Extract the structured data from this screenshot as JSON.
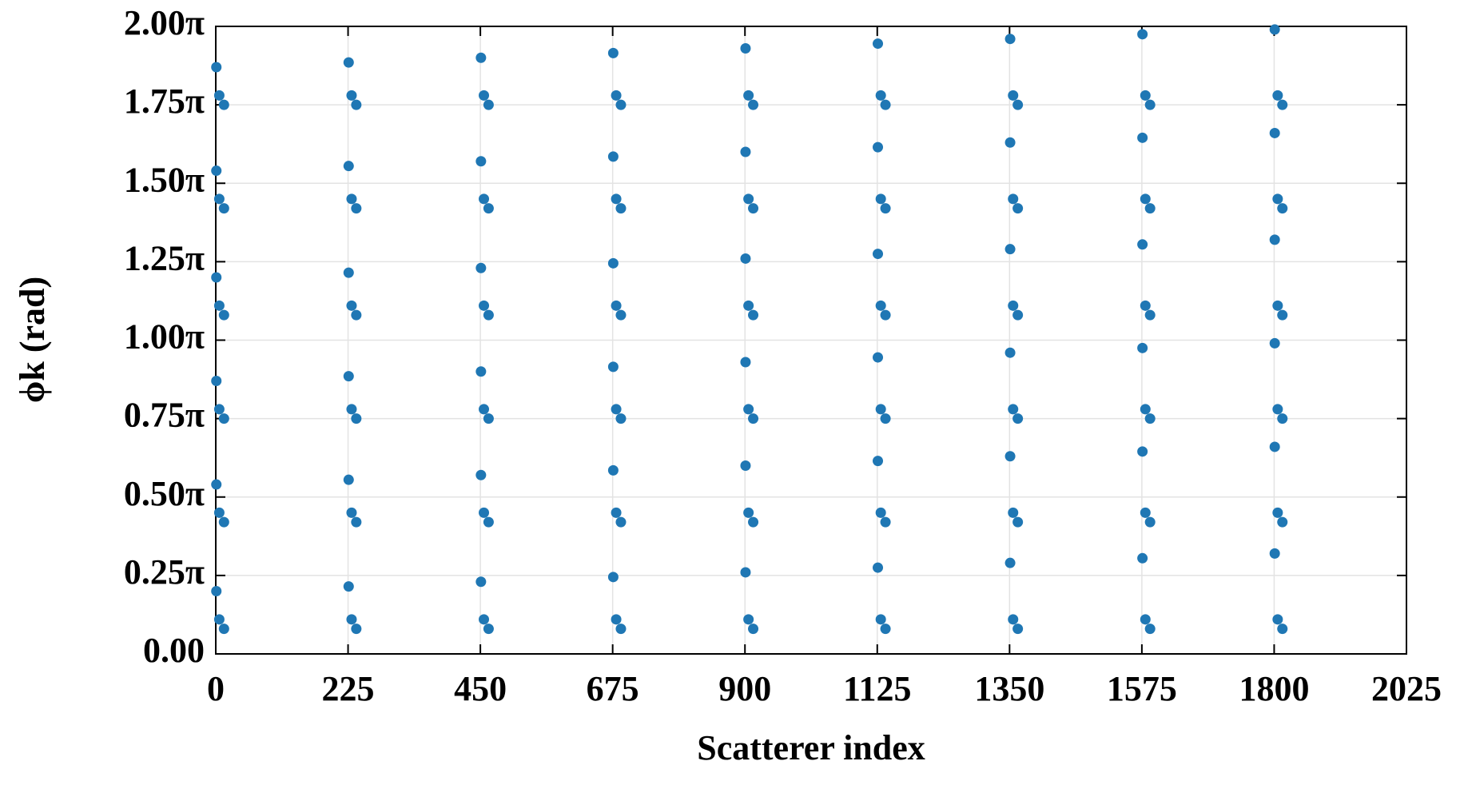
{
  "chart_data": {
    "type": "scatter",
    "x_label": "Scatterer index",
    "y_label": "ϕk (rad)",
    "xlim": [
      0,
      2025
    ],
    "xticks": [
      0,
      225,
      450,
      675,
      900,
      1125,
      1350,
      1575,
      1800,
      2025
    ],
    "ylim": [
      0,
      2
    ],
    "yticks": [
      {
        "value": 0,
        "label": "0.00"
      },
      {
        "value": 0.25,
        "label": "0.25π"
      },
      {
        "value": 0.5,
        "label": "0.50π"
      },
      {
        "value": 0.75,
        "label": "0.75π"
      },
      {
        "value": 1,
        "label": "1.00π"
      },
      {
        "value": 1.25,
        "label": "1.25π"
      },
      {
        "value": 1.5,
        "label": "1.50π"
      },
      {
        "value": 1.75,
        "label": "1.75π"
      },
      {
        "value": 2,
        "label": "2.00π"
      }
    ],
    "grid": true,
    "color": "#1f77b4",
    "x": [
      1,
      6,
      14,
      1,
      6,
      14,
      1,
      6,
      14,
      1,
      6,
      14,
      1,
      6,
      14,
      1,
      6,
      14,
      226,
      231,
      239,
      226,
      231,
      239,
      226,
      231,
      239,
      226,
      231,
      239,
      226,
      231,
      239,
      226,
      231,
      239,
      451,
      456,
      464,
      451,
      456,
      464,
      451,
      456,
      464,
      451,
      456,
      464,
      451,
      456,
      464,
      451,
      456,
      464,
      676,
      681,
      689,
      676,
      681,
      689,
      676,
      681,
      689,
      676,
      681,
      689,
      676,
      681,
      689,
      676,
      681,
      689,
      901,
      906,
      914,
      901,
      906,
      914,
      901,
      906,
      914,
      901,
      906,
      914,
      901,
      906,
      914,
      901,
      906,
      914,
      1126,
      1131,
      1139,
      1126,
      1131,
      1139,
      1126,
      1131,
      1139,
      1126,
      1131,
      1139,
      1126,
      1131,
      1139,
      1126,
      1131,
      1139,
      1351,
      1356,
      1364,
      1351,
      1356,
      1364,
      1351,
      1356,
      1364,
      1351,
      1356,
      1364,
      1351,
      1356,
      1364,
      1351,
      1356,
      1364,
      1576,
      1581,
      1589,
      1576,
      1581,
      1589,
      1576,
      1581,
      1589,
      1576,
      1581,
      1589,
      1576,
      1581,
      1589,
      1576,
      1581,
      1589,
      1801,
      1806,
      1814,
      1801,
      1806,
      1814,
      1801,
      1806,
      1814,
      1801,
      1806,
      1814,
      1801,
      1806,
      1814,
      1801,
      1806,
      1814
    ],
    "values": [
      0.2,
      0.11,
      0.08,
      0.54,
      0.45,
      0.42,
      0.87,
      0.78,
      0.75,
      1.2,
      1.11,
      1.08,
      1.54,
      1.45,
      1.42,
      1.87,
      1.78,
      1.75,
      0.215,
      0.11,
      0.08,
      0.555,
      0.45,
      0.42,
      0.885,
      0.78,
      0.75,
      1.215,
      1.11,
      1.08,
      1.555,
      1.45,
      1.42,
      1.885,
      1.78,
      1.75,
      0.23,
      0.11,
      0.08,
      0.57,
      0.45,
      0.42,
      0.9,
      0.78,
      0.75,
      1.23,
      1.11,
      1.08,
      1.57,
      1.45,
      1.42,
      1.9,
      1.78,
      1.75,
      0.245,
      0.11,
      0.08,
      0.585,
      0.45,
      0.42,
      0.915,
      0.78,
      0.75,
      1.245,
      1.11,
      1.08,
      1.585,
      1.45,
      1.42,
      1.915,
      1.78,
      1.75,
      0.26,
      0.11,
      0.08,
      0.6,
      0.45,
      0.42,
      0.93,
      0.78,
      0.75,
      1.26,
      1.11,
      1.08,
      1.6,
      1.45,
      1.42,
      1.93,
      1.78,
      1.75,
      0.275,
      0.11,
      0.08,
      0.615,
      0.45,
      0.42,
      0.945,
      0.78,
      0.75,
      1.275,
      1.11,
      1.08,
      1.615,
      1.45,
      1.42,
      1.945,
      1.78,
      1.75,
      0.29,
      0.11,
      0.08,
      0.63,
      0.45,
      0.42,
      0.96,
      0.78,
      0.75,
      1.29,
      1.11,
      1.08,
      1.63,
      1.45,
      1.42,
      1.96,
      1.78,
      1.75,
      0.305,
      0.11,
      0.08,
      0.645,
      0.45,
      0.42,
      0.975,
      0.78,
      0.75,
      1.305,
      1.11,
      1.08,
      1.645,
      1.45,
      1.42,
      1.975,
      1.78,
      1.75,
      0.32,
      0.11,
      0.08,
      0.66,
      0.45,
      0.42,
      0.99,
      0.78,
      0.75,
      1.32,
      1.11,
      1.08,
      1.66,
      1.45,
      1.42,
      1.99,
      1.78,
      1.75
    ]
  }
}
